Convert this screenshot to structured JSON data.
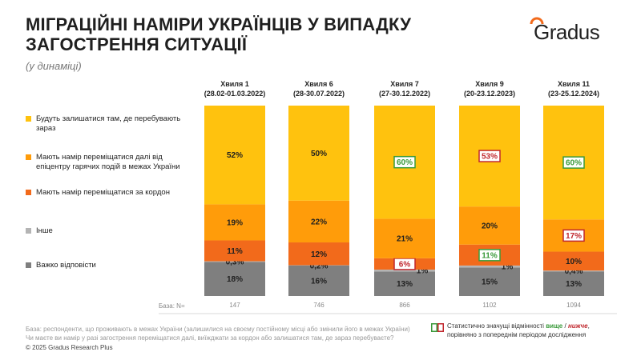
{
  "header": {
    "title": "МІГРАЦІЙНІ НАМІРИ УКРАЇНЦІВ У ВИПАДКУ ЗАГОСТРЕННЯ СИТУАЦІЇ",
    "subtitle": "(у динаміці)",
    "logo": "Gradus"
  },
  "colors": {
    "stay": "#ffc20e",
    "move_inside": "#ff9c0a",
    "abroad": "#f26a1b",
    "other": "#b4b4b4",
    "hard": "#7f7f7f",
    "higher": "#3a9a3a",
    "lower": "#c0272d"
  },
  "legend": [
    {
      "key": "stay",
      "label": "Будуть залишатися там, де перебувають зараз"
    },
    {
      "key": "move_inside",
      "label": "Мають намір переміщатися далі від епіцентру гарячих подій в межах України"
    },
    {
      "key": "abroad",
      "label": "Мають намір переміщатися за кордон"
    },
    {
      "key": "other",
      "label": "Інше"
    },
    {
      "key": "hard",
      "label": "Важко відповісти"
    }
  ],
  "chart_data": {
    "type": "bar",
    "stacked": true,
    "unit": "%",
    "categories": [
      {
        "wave": "Хвиля 1",
        "dates": "(28.02-01.03.2022)"
      },
      {
        "wave": "Хвиля 6",
        "dates": "(28-30.07.2022)"
      },
      {
        "wave": "Хвиля 7",
        "dates": "(27-30.12.2022)"
      },
      {
        "wave": "Хвиля 9",
        "dates": "(20-23.12.2023)"
      },
      {
        "wave": "Хвиля 11",
        "dates": "(23-25.12.2024)"
      }
    ],
    "series": [
      {
        "key": "hard",
        "name": "Важко відповісти",
        "values": [
          18,
          16,
          13,
          15,
          13
        ],
        "labels": [
          "18%",
          "16%",
          "13%",
          "15%",
          "13%"
        ],
        "sig": [
          null,
          null,
          null,
          null,
          null
        ]
      },
      {
        "key": "other",
        "name": "Інше",
        "values": [
          0.3,
          0.2,
          1,
          1,
          0.4
        ],
        "labels": [
          "0,3%",
          "0,2%",
          "1%",
          "1%",
          "0,4%"
        ],
        "sig": [
          null,
          null,
          null,
          null,
          null
        ]
      },
      {
        "key": "abroad",
        "name": "Мають намір переміщатися за кордон",
        "values": [
          11,
          12,
          6,
          11,
          10
        ],
        "labels": [
          "11%",
          "12%",
          "6%",
          "11%",
          "10%"
        ],
        "sig": [
          null,
          null,
          "lower",
          "higher",
          null
        ]
      },
      {
        "key": "move_inside",
        "name": "Мають намір переміщатися далі від епіцентру гарячих подій в межах України",
        "values": [
          19,
          22,
          21,
          20,
          17
        ],
        "labels": [
          "19%",
          "22%",
          "21%",
          "20%",
          "17%"
        ],
        "sig": [
          null,
          null,
          null,
          null,
          "lower"
        ]
      },
      {
        "key": "stay",
        "name": "Будуть залишатися там, де перебувають зараз",
        "values": [
          52,
          50,
          60,
          53,
          60
        ],
        "labels": [
          "52%",
          "50%",
          "60%",
          "53%",
          "60%"
        ],
        "sig": [
          null,
          null,
          "higher",
          "lower",
          "higher"
        ]
      }
    ],
    "base_label": "База: N=",
    "base": [
      "147",
      "746",
      "866",
      "1102",
      "1094"
    ]
  },
  "footer": {
    "base_note": "База: респонденти, що проживають в межах України (залишилися на своєму постійному місці або змінили його в межах України)",
    "question": "Чи маєте ви намір у разі загострення переміщатися далі, виїжджати за кордон або залишатися там, де зараз перебуваєте?",
    "copyright": "© 2025 Gradus Research Plus",
    "sig_prefix": "Статистично значущі відмінності",
    "sig_higher": "вище",
    "sig_sep": "/",
    "sig_lower": "нижче",
    "sig_suffix": ",",
    "sig_line2": "порівняно з попереднім періодом дослідження"
  }
}
